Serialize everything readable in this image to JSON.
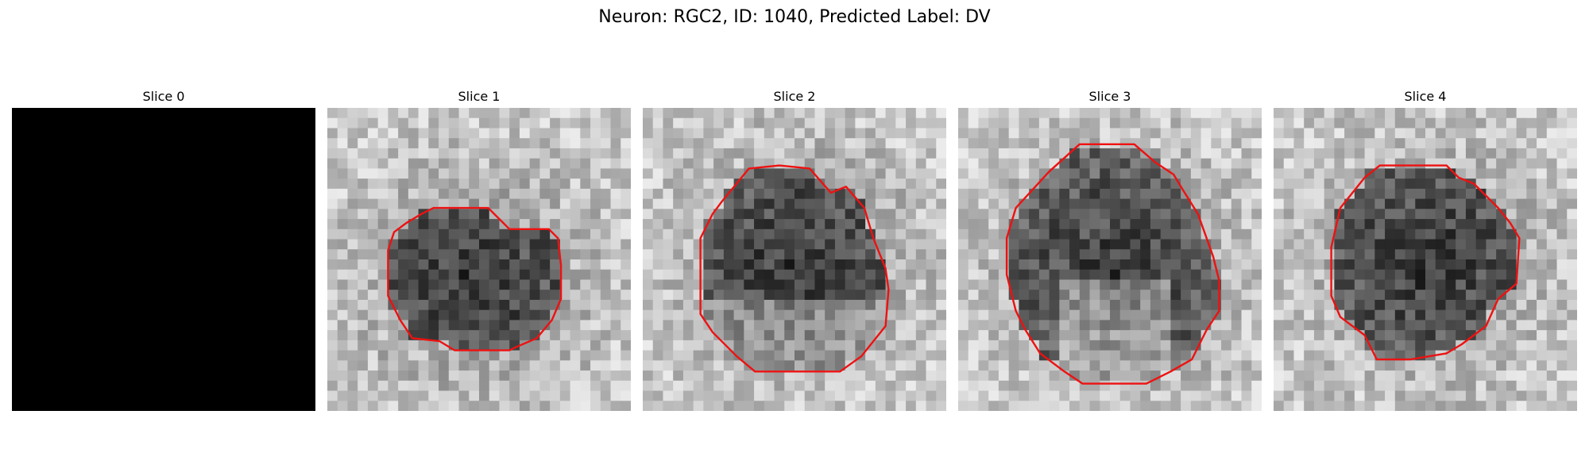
{
  "figure": {
    "title": "Neuron: RGC2, ID: 1040, Predicted Label: DV"
  },
  "palette": {
    "contour": "#ee1111",
    "empty_slice": "#000000"
  },
  "panels": [
    {
      "title": "Slice 0",
      "blank": true,
      "seed": 11,
      "contour": []
    },
    {
      "title": "Slice 1",
      "blank": false,
      "seed": 23,
      "contour": [
        [
          0.31,
          0.35
        ],
        [
          0.35,
          0.33
        ],
        [
          0.53,
          0.33
        ],
        [
          0.6,
          0.4
        ],
        [
          0.73,
          0.4
        ],
        [
          0.76,
          0.43
        ],
        [
          0.77,
          0.52
        ],
        [
          0.77,
          0.63
        ],
        [
          0.74,
          0.7
        ],
        [
          0.69,
          0.76
        ],
        [
          0.62,
          0.79
        ],
        [
          0.6,
          0.8
        ],
        [
          0.42,
          0.8
        ],
        [
          0.37,
          0.77
        ],
        [
          0.28,
          0.76
        ],
        [
          0.24,
          0.7
        ],
        [
          0.2,
          0.62
        ],
        [
          0.2,
          0.47
        ],
        [
          0.22,
          0.41
        ],
        [
          0.26,
          0.38
        ]
      ]
    },
    {
      "title": "Slice 2",
      "blank": false,
      "seed": 37,
      "contour": [
        [
          0.26,
          0.31
        ],
        [
          0.35,
          0.2
        ],
        [
          0.45,
          0.19
        ],
        [
          0.55,
          0.2
        ],
        [
          0.62,
          0.28
        ],
        [
          0.67,
          0.26
        ],
        [
          0.73,
          0.33
        ],
        [
          0.76,
          0.43
        ],
        [
          0.8,
          0.53
        ],
        [
          0.81,
          0.6
        ],
        [
          0.8,
          0.72
        ],
        [
          0.72,
          0.82
        ],
        [
          0.65,
          0.87
        ],
        [
          0.37,
          0.87
        ],
        [
          0.31,
          0.82
        ],
        [
          0.23,
          0.74
        ],
        [
          0.19,
          0.68
        ],
        [
          0.19,
          0.43
        ],
        [
          0.23,
          0.35
        ]
      ]
    },
    {
      "title": "Slice 3",
      "blank": false,
      "seed": 51,
      "contour": [
        [
          0.19,
          0.33
        ],
        [
          0.3,
          0.21
        ],
        [
          0.4,
          0.12
        ],
        [
          0.58,
          0.12
        ],
        [
          0.65,
          0.18
        ],
        [
          0.71,
          0.22
        ],
        [
          0.74,
          0.27
        ],
        [
          0.79,
          0.35
        ],
        [
          0.84,
          0.49
        ],
        [
          0.86,
          0.57
        ],
        [
          0.86,
          0.67
        ],
        [
          0.82,
          0.73
        ],
        [
          0.77,
          0.83
        ],
        [
          0.7,
          0.87
        ],
        [
          0.62,
          0.91
        ],
        [
          0.41,
          0.91
        ],
        [
          0.35,
          0.87
        ],
        [
          0.27,
          0.81
        ],
        [
          0.22,
          0.73
        ],
        [
          0.19,
          0.67
        ],
        [
          0.16,
          0.55
        ],
        [
          0.16,
          0.43
        ]
      ]
    },
    {
      "title": "Slice 4",
      "blank": false,
      "seed": 67,
      "contour": [
        [
          0.22,
          0.33
        ],
        [
          0.3,
          0.23
        ],
        [
          0.35,
          0.19
        ],
        [
          0.57,
          0.19
        ],
        [
          0.61,
          0.23
        ],
        [
          0.66,
          0.25
        ],
        [
          0.74,
          0.33
        ],
        [
          0.78,
          0.38
        ],
        [
          0.81,
          0.43
        ],
        [
          0.8,
          0.58
        ],
        [
          0.74,
          0.63
        ],
        [
          0.7,
          0.72
        ],
        [
          0.62,
          0.78
        ],
        [
          0.57,
          0.81
        ],
        [
          0.45,
          0.83
        ],
        [
          0.34,
          0.83
        ],
        [
          0.3,
          0.75
        ],
        [
          0.22,
          0.69
        ],
        [
          0.19,
          0.62
        ],
        [
          0.19,
          0.46
        ]
      ]
    }
  ]
}
